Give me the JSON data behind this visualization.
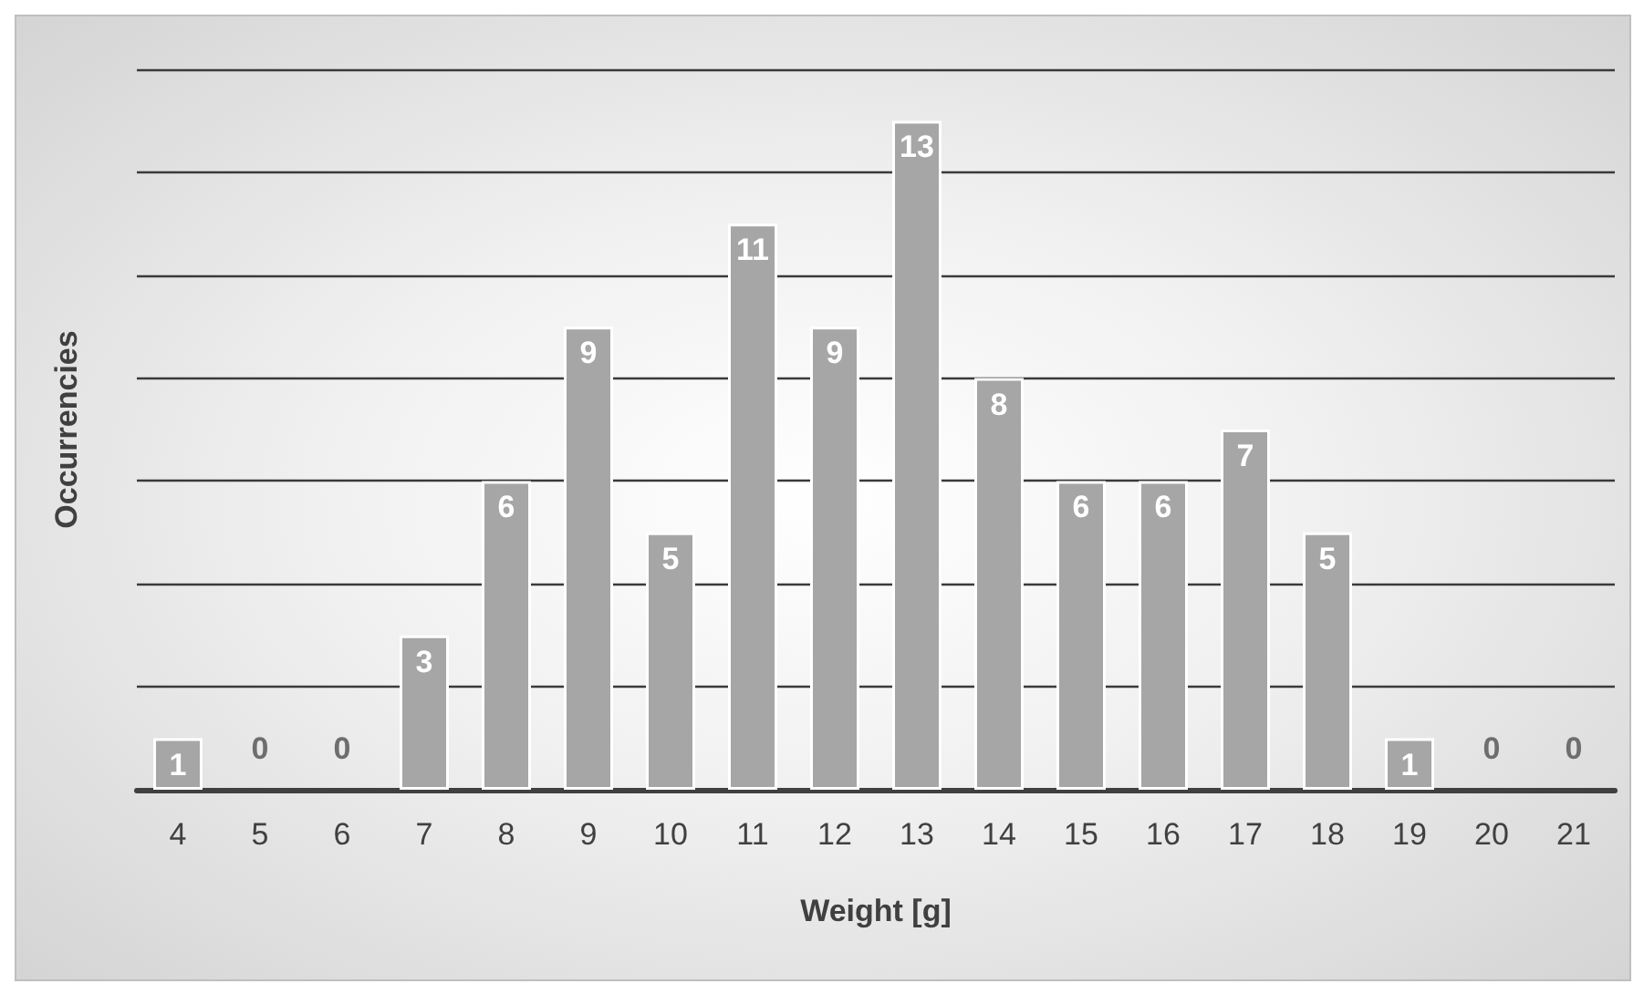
{
  "chart_data": {
    "type": "bar",
    "xlabel": "Weight [g]",
    "ylabel": "Occurrencies",
    "categories": [
      "4",
      "5",
      "6",
      "7",
      "8",
      "9",
      "10",
      "11",
      "12",
      "13",
      "14",
      "15",
      "16",
      "17",
      "18",
      "19",
      "20",
      "21"
    ],
    "values": [
      1,
      0,
      0,
      3,
      6,
      9,
      5,
      11,
      9,
      13,
      8,
      6,
      6,
      7,
      5,
      1,
      0,
      0
    ],
    "color": "#a6a6a6",
    "ylim": [
      0,
      14
    ],
    "yticks": [
      {
        "value": 0,
        "label": null
      },
      {
        "value": 2,
        "label": null
      },
      {
        "value": 4,
        "label": null
      },
      {
        "value": 6,
        "label": null
      },
      {
        "value": 8,
        "label": null
      },
      {
        "value": 10,
        "label": null
      },
      {
        "value": 12,
        "label": null
      },
      {
        "value": 14,
        "label": null
      }
    ],
    "tick_labels": "x",
    "grid": "y",
    "data_labels": true
  }
}
